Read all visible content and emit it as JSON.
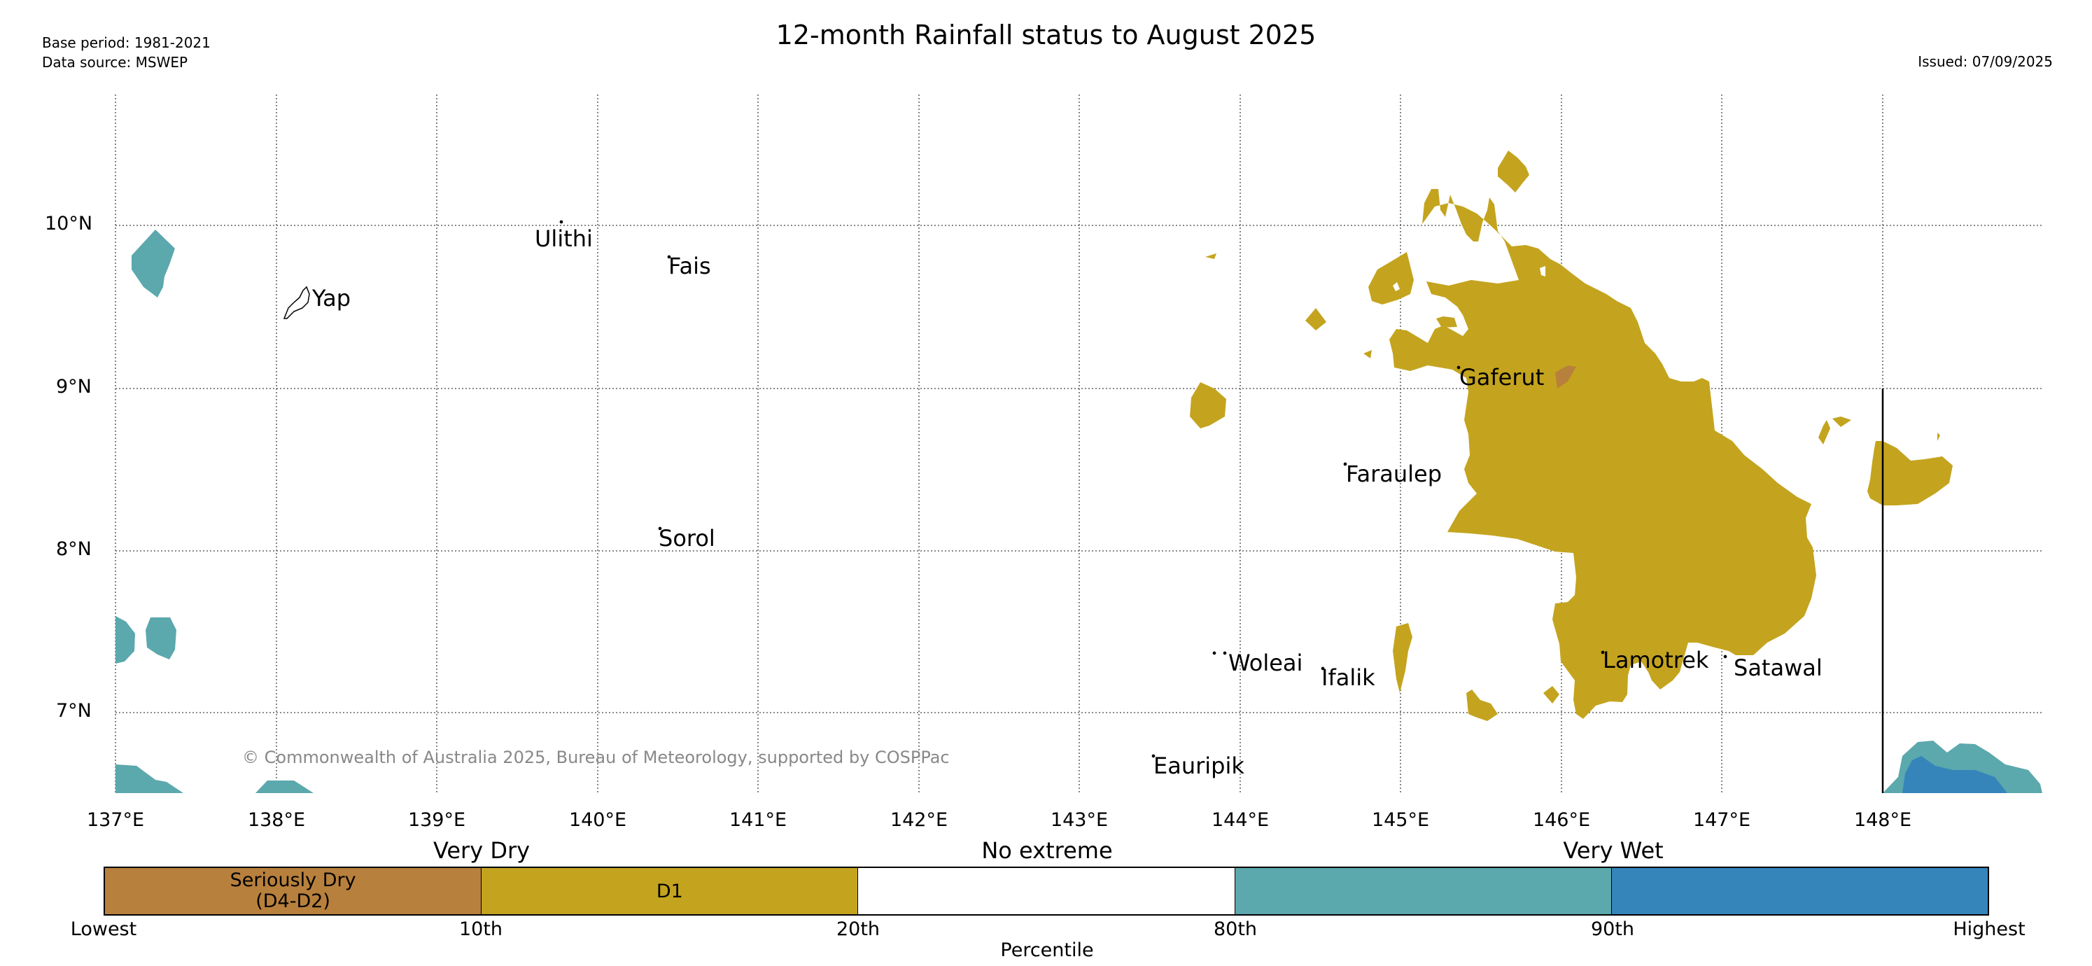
{
  "header": {
    "title": "12-month Rainfall status to August 2025",
    "base_period": "Base period: 1981-2021",
    "data_source": "Data source: MSWEP",
    "issued": "Issued: 07/09/2025"
  },
  "map": {
    "lon_ticks": [
      "137°E",
      "138°E",
      "139°E",
      "140°E",
      "141°E",
      "142°E",
      "143°E",
      "144°E",
      "145°E",
      "146°E",
      "147°E",
      "148°E"
    ],
    "lat_ticks": [
      "10°N",
      "9°N",
      "8°N",
      "7°N"
    ],
    "places": [
      {
        "id": "yap",
        "name": "Yap"
      },
      {
        "id": "ulithi",
        "name": "Ulithi"
      },
      {
        "id": "fais",
        "name": "Fais"
      },
      {
        "id": "sorol",
        "name": "Sorol"
      },
      {
        "id": "gaferut",
        "name": "Gaferut"
      },
      {
        "id": "faraulep",
        "name": "Faraulep"
      },
      {
        "id": "woleai",
        "name": "Woleai"
      },
      {
        "id": "ifalik",
        "name": "Ifalik"
      },
      {
        "id": "lamotrek",
        "name": "Lamotrek"
      },
      {
        "id": "satawal",
        "name": "Satawal"
      },
      {
        "id": "eauripik",
        "name": "Eauripik"
      }
    ],
    "copyright": "© Commonwealth of Australia 2025, Bureau of Meteorology, supported by COSPPac",
    "colors": {
      "seriously_dry": "#B8803D",
      "d1": "#C4A41E",
      "very_wet_light": "#5BA8AD",
      "very_wet_dark": "#3585BB"
    }
  },
  "legend": {
    "categories": {
      "very_dry": "Very Dry",
      "no_extreme": "No extreme",
      "very_wet": "Very Wet"
    },
    "boxes": [
      {
        "label": "Seriously Dry\n(D4-D2)",
        "color": "#B8803D"
      },
      {
        "label": "D1",
        "color": "#C4A41E"
      },
      {
        "label": "",
        "color": "#FFFFFF"
      },
      {
        "label": "",
        "color": "#5BA8AD"
      },
      {
        "label": "",
        "color": "#3585BB"
      }
    ],
    "bounds": [
      "Lowest",
      "10th",
      "20th",
      "80th",
      "90th",
      "Highest"
    ],
    "axis_label": "Percentile"
  }
}
